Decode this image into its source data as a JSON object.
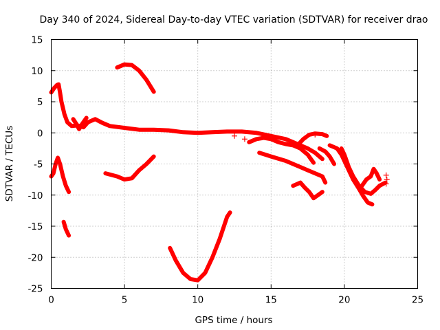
{
  "chart_data": {
    "type": "scatter",
    "title": "Day 340 of 2024, Sidereal Day-to-day VTEC variation (SDTVAR) for receiver drao",
    "xlabel": "GPS time / hours",
    "ylabel": "SDTVAR / TECUs",
    "xlim": [
      0,
      25
    ],
    "ylim": [
      -25,
      15
    ],
    "xticks": [
      "0",
      "5",
      "10",
      "15",
      "20",
      "25"
    ],
    "yticks": [
      "15",
      "10",
      "5",
      "0",
      "-5",
      "-10",
      "-15",
      "-20",
      "-25"
    ],
    "grid": true,
    "marker": "+",
    "color": "#ff0000",
    "series": [
      {
        "name": "s1",
        "points": [
          [
            0,
            6.5
          ],
          [
            0.2,
            7.2
          ],
          [
            0.4,
            7.7
          ],
          [
            0.5,
            7.8
          ],
          [
            0.6,
            6.5
          ],
          [
            0.7,
            5
          ],
          [
            0.9,
            3
          ],
          [
            1.1,
            1.7
          ],
          [
            1.4,
            1.1
          ],
          [
            1.8,
            1.2
          ],
          [
            2.2,
            0.9
          ],
          [
            2.5,
            1.7
          ],
          [
            3.0,
            2.2
          ],
          [
            3.5,
            1.6
          ],
          [
            4.0,
            1.1
          ],
          [
            5.0,
            0.8
          ],
          [
            6.0,
            0.5
          ],
          [
            7.0,
            0.5
          ],
          [
            8.0,
            0.4
          ],
          [
            9.0,
            0.1
          ],
          [
            10.0,
            0
          ],
          [
            11.0,
            0.1
          ],
          [
            12.0,
            0.2
          ],
          [
            13.0,
            0.2
          ],
          [
            14.0,
            0
          ],
          [
            15.0,
            -0.5
          ],
          [
            16.0,
            -1.0
          ],
          [
            16.5,
            -1.5
          ],
          [
            17.0,
            -2.0
          ],
          [
            17.5,
            -2.5
          ],
          [
            18.0,
            -3.2
          ],
          [
            18.5,
            -4.2
          ]
        ]
      },
      {
        "name": "s2",
        "points": [
          [
            1.5,
            2.2
          ],
          [
            1.7,
            1.5
          ],
          [
            1.9,
            0.6
          ],
          [
            2.1,
            1.4
          ],
          [
            2.4,
            2.4
          ]
        ]
      },
      {
        "name": "s3",
        "points": [
          [
            4.5,
            10.5
          ],
          [
            5.0,
            11.0
          ],
          [
            5.5,
            10.9
          ],
          [
            6.0,
            10.0
          ],
          [
            6.5,
            8.5
          ],
          [
            7.0,
            6.6
          ]
        ]
      },
      {
        "name": "s4",
        "points": [
          [
            0,
            -7
          ],
          [
            0.15,
            -6.5
          ],
          [
            0.3,
            -5
          ],
          [
            0.45,
            -4
          ],
          [
            0.6,
            -5
          ],
          [
            0.8,
            -7
          ],
          [
            1.0,
            -8.5
          ],
          [
            1.2,
            -9.5
          ]
        ]
      },
      {
        "name": "s5",
        "points": [
          [
            0.85,
            -14.3
          ],
          [
            1.0,
            -15.5
          ],
          [
            1.2,
            -16.5
          ]
        ]
      },
      {
        "name": "s6",
        "points": [
          [
            3.7,
            -6.5
          ],
          [
            4.5,
            -7
          ],
          [
            5.0,
            -7.5
          ],
          [
            5.5,
            -7.3
          ],
          [
            6.0,
            -6
          ],
          [
            6.5,
            -5
          ],
          [
            7.0,
            -3.8
          ]
        ]
      },
      {
        "name": "s7",
        "points": [
          [
            8.1,
            -18.5
          ],
          [
            8.5,
            -20.5
          ],
          [
            9.0,
            -22.5
          ],
          [
            9.5,
            -23.5
          ],
          [
            10.0,
            -23.7
          ],
          [
            10.5,
            -22.5
          ],
          [
            11.0,
            -20
          ],
          [
            11.5,
            -17
          ],
          [
            12.0,
            -13.5
          ],
          [
            12.2,
            -12.8
          ]
        ]
      },
      {
        "name": "s8",
        "points": [
          [
            14.2,
            -3.2
          ],
          [
            15.0,
            -3.8
          ],
          [
            16.0,
            -4.5
          ],
          [
            17.0,
            -5.5
          ],
          [
            17.5,
            -6.0
          ],
          [
            18.0,
            -6.5
          ],
          [
            18.5,
            -7.0
          ],
          [
            18.7,
            -8.0
          ]
        ]
      },
      {
        "name": "s9",
        "points": [
          [
            13.5,
            -1.5
          ],
          [
            14.0,
            -1.0
          ],
          [
            14.5,
            -0.8
          ],
          [
            15.0,
            -1.0
          ],
          [
            15.5,
            -1.5
          ],
          [
            16.0,
            -1.8
          ],
          [
            16.5,
            -2.0
          ],
          [
            17.0,
            -2.5
          ],
          [
            17.5,
            -3.5
          ],
          [
            17.9,
            -4.8
          ]
        ]
      },
      {
        "name": "s10",
        "points": [
          [
            16.8,
            -2.0
          ],
          [
            17.2,
            -1.0
          ],
          [
            17.6,
            -0.3
          ],
          [
            18.0,
            -0.1
          ],
          [
            18.5,
            -0.2
          ],
          [
            18.8,
            -0.5
          ]
        ]
      },
      {
        "name": "s11",
        "points": [
          [
            16.5,
            -8.5
          ],
          [
            17.0,
            -8.0
          ],
          [
            17.3,
            -8.8
          ],
          [
            17.6,
            -9.5
          ],
          [
            17.9,
            -10.5
          ],
          [
            18.2,
            -10.0
          ],
          [
            18.5,
            -9.5
          ]
        ]
      },
      {
        "name": "s12",
        "points": [
          [
            18.3,
            -2.5
          ],
          [
            18.7,
            -3.0
          ],
          [
            19.0,
            -3.8
          ],
          [
            19.3,
            -5.0
          ]
        ]
      },
      {
        "name": "s13",
        "points": [
          [
            19.0,
            -2.0
          ],
          [
            19.5,
            -2.5
          ],
          [
            19.8,
            -3.5
          ],
          [
            20.0,
            -4.5
          ],
          [
            20.3,
            -6.0
          ],
          [
            20.6,
            -7.5
          ],
          [
            21.0,
            -9.0
          ],
          [
            21.3,
            -10.2
          ],
          [
            21.6,
            -11.2
          ],
          [
            21.9,
            -11.5
          ]
        ]
      },
      {
        "name": "s14",
        "points": [
          [
            19.8,
            -2.5
          ],
          [
            20.0,
            -3.5
          ],
          [
            20.3,
            -5.5
          ],
          [
            20.6,
            -7.0
          ],
          [
            21.0,
            -8.5
          ],
          [
            21.4,
            -9.5
          ],
          [
            21.8,
            -9.8
          ],
          [
            22.1,
            -9.2
          ],
          [
            22.4,
            -8.5
          ],
          [
            22.8,
            -8.0
          ]
        ]
      },
      {
        "name": "s15",
        "points": [
          [
            21.2,
            -8.5
          ],
          [
            21.5,
            -7.5
          ],
          [
            21.8,
            -7.0
          ],
          [
            22.0,
            -5.8
          ],
          [
            22.2,
            -6.5
          ],
          [
            22.4,
            -7.5
          ]
        ]
      }
    ],
    "sparse_points": [
      [
        22.85,
        -6.8
      ],
      [
        22.9,
        -7.5
      ],
      [
        22.85,
        -8.2
      ],
      [
        18.0,
        -0.3
      ],
      [
        12.5,
        -0.5
      ],
      [
        13.2,
        -1.0
      ]
    ]
  }
}
